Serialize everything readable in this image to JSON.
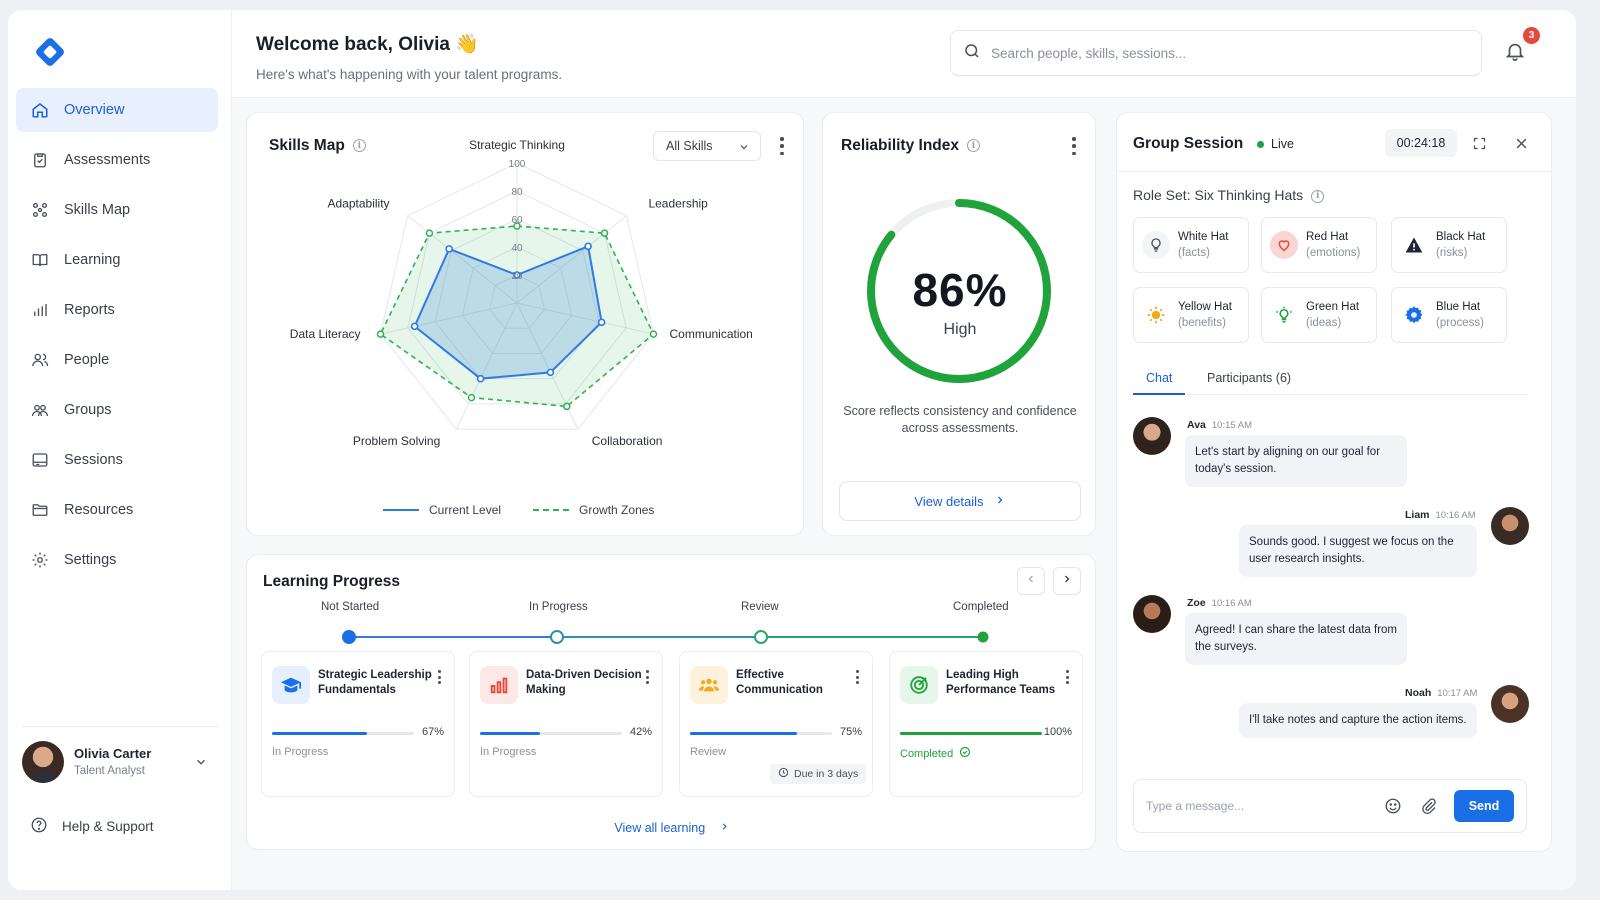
{
  "sidebar": {
    "items": [
      {
        "label": "Overview",
        "icon": "home-icon",
        "active": true
      },
      {
        "label": "Assessments",
        "icon": "clipboard-icon"
      },
      {
        "label": "Skills Map",
        "icon": "skills-network-icon"
      },
      {
        "label": "Learning",
        "icon": "book-icon"
      },
      {
        "label": "Reports",
        "icon": "bar-chart-icon"
      },
      {
        "label": "People",
        "icon": "people-icon"
      },
      {
        "label": "Groups",
        "icon": "group-icon"
      },
      {
        "label": "Sessions",
        "icon": "sessions-icon"
      },
      {
        "label": "Resources",
        "icon": "folder-icon"
      },
      {
        "label": "Settings",
        "icon": "gear-icon"
      }
    ],
    "user": {
      "name": "Olivia Carter",
      "role": "Talent Analyst"
    },
    "help_label": "Help & Support"
  },
  "header": {
    "welcome": "Welcome back, Olivia 👋",
    "subtitle": "Here's what's happening with your talent programs.",
    "search_placeholder": "Search people, skills, sessions...",
    "notifications_count": "3"
  },
  "skills_map": {
    "title": "Skills Map",
    "filter": "All Skills",
    "legend": {
      "current": "Current Level",
      "growth": "Growth Zones"
    },
    "colors": {
      "current": "#2f7be0",
      "growth": "#2fb24f"
    }
  },
  "chart_data": {
    "type": "radar",
    "categories": [
      "Strategic Thinking",
      "Leadership",
      "Communication",
      "Collaboration",
      "Problem Solving",
      "Data Literacy",
      "Adaptability"
    ],
    "radial_ticks": [
      "20",
      "40",
      "60",
      "80",
      "100"
    ],
    "rlim": [
      0,
      100
    ],
    "series": [
      {
        "name": "Current Level",
        "values": [
          20,
          65,
          62,
          55,
          60,
          75,
          62
        ]
      },
      {
        "name": "Growth Zones",
        "values": [
          55,
          80,
          100,
          82,
          75,
          100,
          80
        ]
      }
    ]
  },
  "reliability": {
    "title": "Reliability Index",
    "value": "86%",
    "fraction": 0.86,
    "level": "High",
    "description": "Score reflects consistency and confidence across assessments.",
    "button": "View details",
    "color": "#1fa33a"
  },
  "learning": {
    "title": "Learning Progress",
    "stages": [
      "Not Started",
      "In Progress",
      "Review",
      "Completed"
    ],
    "courses": [
      {
        "title": "Strategic Leadership Fundamentals",
        "percent": "67%",
        "progress": 0.67,
        "status": "In Progress",
        "icon": "graduation-cap-icon"
      },
      {
        "title": "Data-Driven Decision Making",
        "percent": "42%",
        "progress": 0.42,
        "status": "In Progress",
        "icon": "bar-chart-icon"
      },
      {
        "title": "Effective Communication",
        "percent": "75%",
        "progress": 0.75,
        "status": "Review",
        "icon": "people-icon",
        "due": "Due in 3 days"
      },
      {
        "title": "Leading High Performance Teams",
        "percent": "100%",
        "progress": 1.0,
        "status": "Completed",
        "icon": "target-icon"
      }
    ],
    "view_all": "View all learning"
  },
  "group_session": {
    "title": "Group Session",
    "live_label": "Live",
    "timer": "00:24:18",
    "role_set": "Role Set: Six Thinking Hats",
    "hats": [
      {
        "name": "White Hat",
        "sub": "(facts)",
        "icon": "lightbulb-outline-icon",
        "bg": "#ffffff",
        "border": "#e6e8ec"
      },
      {
        "name": "Red Hat",
        "sub": "(emotions)",
        "icon": "heart-icon",
        "bg": "#fde8e8",
        "border": "#f6c9c9"
      },
      {
        "name": "Black Hat",
        "sub": "(risks)",
        "icon": "warning-icon",
        "bg": "#ececee",
        "border": "#dcdde1"
      },
      {
        "name": "Yellow Hat",
        "sub": "(benefits)",
        "icon": "sun-icon",
        "bg": "#fdf5e3",
        "border": "#f4e4bd"
      },
      {
        "name": "Green Hat",
        "sub": "(ideas)",
        "icon": "lightbulb-icon",
        "bg": "#e6f6ea",
        "border": "#c8e9d0"
      },
      {
        "name": "Blue Hat",
        "sub": "(process)",
        "icon": "gear-icon",
        "bg": "#e6effc",
        "border": "#c9dbf6"
      }
    ],
    "tabs": [
      "Chat",
      "Participants (6)"
    ],
    "messages": [
      {
        "name": "Ava",
        "time": "10:15 AM",
        "text": "Let's start by aligning on our goal for today's session."
      },
      {
        "name": "Liam",
        "time": "10:16 AM",
        "text": "Sounds good. I suggest we focus on the user research insights."
      },
      {
        "name": "Zoe",
        "time": "10:16 AM",
        "text": "Agreed! I can share the latest data from the surveys."
      },
      {
        "name": "Noah",
        "time": "10:17 AM",
        "text": "I'll take notes and capture the action items."
      }
    ],
    "composer_placeholder": "Type a message...",
    "send": "Send"
  }
}
